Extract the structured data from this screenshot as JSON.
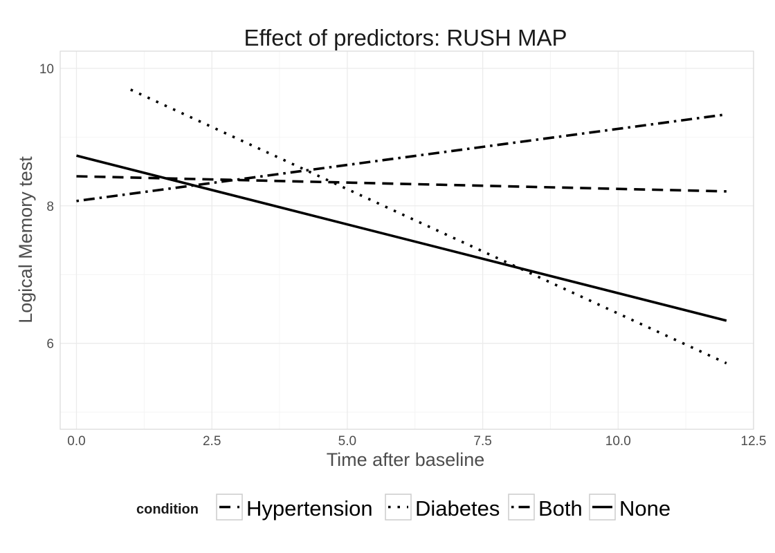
{
  "chart_data": {
    "type": "line",
    "title": "Effect of predictors: RUSH MAP",
    "xlabel": "Time after baseline",
    "ylabel": "Logical Memory test",
    "xlim": [
      -0.3,
      12.5
    ],
    "ylim": [
      4.75,
      10.25
    ],
    "x_ticks": [
      0.0,
      2.5,
      5.0,
      7.5,
      10.0,
      12.5
    ],
    "x_tick_labels": [
      "0.0",
      "2.5",
      "5.0",
      "7.5",
      "10.0",
      "12.5"
    ],
    "y_ticks": [
      6,
      8,
      10
    ],
    "y_tick_labels": [
      "6",
      "8",
      "10"
    ],
    "grid": true,
    "legend": {
      "title": "condition",
      "position": "bottom"
    },
    "series": [
      {
        "name": "Hypertension",
        "linetype": "dashed",
        "x": [
          0,
          12
        ],
        "y": [
          8.43,
          8.21
        ]
      },
      {
        "name": "Diabetes",
        "linetype": "dotted",
        "x": [
          1,
          12
        ],
        "y": [
          9.69,
          5.71
        ]
      },
      {
        "name": "Both",
        "linetype": "dotdash",
        "x": [
          0,
          12
        ],
        "y": [
          8.07,
          9.33
        ]
      },
      {
        "name": "None",
        "linetype": "solid",
        "x": [
          0,
          12
        ],
        "y": [
          8.73,
          6.33
        ]
      }
    ]
  },
  "colors": {
    "line": "#000000",
    "grid": "#ebebeb",
    "axis_text": "#4d4d4d"
  }
}
